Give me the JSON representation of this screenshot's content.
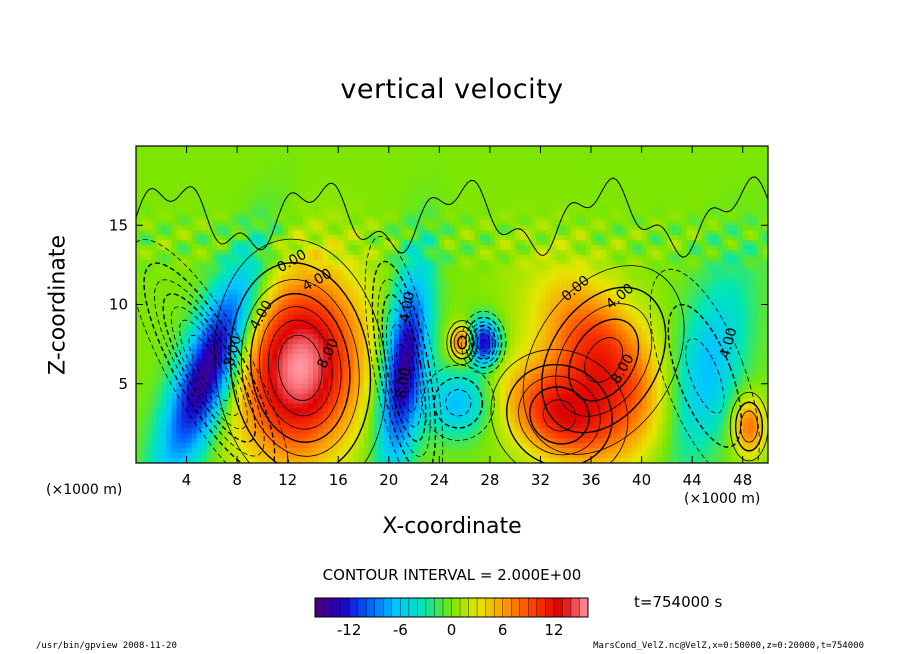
{
  "title": "vertical velocity",
  "footer": {
    "left": "/usr/bin/gpview   2008-11-20",
    "right": "MarsCond_VelZ.nc@VelZ,x=0:50000,z=0:20000,t=754000"
  },
  "contour_interval": "CONTOUR INTERVAL = 2.000E+00",
  "timestamp": "t=754000 s",
  "chart_data": {
    "type": "heatmap",
    "title": "vertical velocity",
    "xlabel": "X-coordinate",
    "ylabel": "Z-coordinate",
    "x_unit_label": "(×1000 m)",
    "y_unit_label": "(×1000 m)",
    "x_ticks": [
      4,
      8,
      12,
      16,
      20,
      24,
      28,
      32,
      36,
      40,
      44,
      48
    ],
    "y_ticks": [
      5,
      10,
      15
    ],
    "xlim": [
      0,
      50
    ],
    "ylim": [
      0,
      20
    ],
    "color_scale": {
      "min": -16,
      "max": 16,
      "ticks": [
        -12,
        -6,
        0,
        6,
        12
      ],
      "colors": [
        "#4b0073",
        "#1e00c8",
        "#0064ff",
        "#00c8ff",
        "#00e6b4",
        "#7de600",
        "#e6e600",
        "#ff9600",
        "#ff3c00",
        "#dc0000",
        "#ff96a0"
      ]
    },
    "background_value": 0,
    "features": [
      {
        "x": 5.8,
        "z": 6.0,
        "sx": 1.6,
        "sz": 4.5,
        "value": -16,
        "tilt": 0.45
      },
      {
        "x": 13.0,
        "z": 6.0,
        "sx": 3.3,
        "sz": 4.0,
        "value": 16,
        "tilt": 0.1
      },
      {
        "x": 21.2,
        "z": 6.0,
        "sx": 1.2,
        "sz": 4.2,
        "value": -15,
        "tilt": 0.15
      },
      {
        "x": 25.5,
        "z": 3.8,
        "sx": 1.8,
        "sz": 1.5,
        "value": -7,
        "tilt": 0
      },
      {
        "x": 25.8,
        "z": 7.6,
        "sx": 0.7,
        "sz": 0.8,
        "value": 9,
        "tilt": 0
      },
      {
        "x": 27.5,
        "z": 7.6,
        "sx": 0.9,
        "sz": 1.0,
        "value": -14,
        "tilt": 0
      },
      {
        "x": 33.5,
        "z": 3.0,
        "sx": 3.0,
        "sz": 2.2,
        "value": 11,
        "tilt": -0.5
      },
      {
        "x": 37.0,
        "z": 6.5,
        "sx": 3.0,
        "sz": 3.5,
        "value": 11,
        "tilt": -0.5
      },
      {
        "x": 45.0,
        "z": 5.5,
        "sx": 2.0,
        "sz": 4.5,
        "value": -7,
        "tilt": 0.3
      },
      {
        "x": 48.5,
        "z": 2.3,
        "sx": 0.9,
        "sz": 1.3,
        "value": 8,
        "tilt": 0
      }
    ],
    "contour_labels": [
      {
        "text": "0.00",
        "x": 12.5,
        "z": 12.5,
        "angle": -30
      },
      {
        "text": "4.00",
        "x": 14.5,
        "z": 11.3,
        "angle": -30
      },
      {
        "text": "4.00",
        "x": 10.2,
        "z": 9.2,
        "angle": -60
      },
      {
        "text": "8.00",
        "x": 8.0,
        "z": 7.0,
        "angle": -75
      },
      {
        "text": "8.00",
        "x": 15.5,
        "z": 6.8,
        "angle": -65
      },
      {
        "text": "4.00",
        "x": 21.8,
        "z": 9.8,
        "angle": -80
      },
      {
        "text": "8.00",
        "x": 21.5,
        "z": 5.0,
        "angle": -80
      },
      {
        "text": "0.00",
        "x": 35.0,
        "z": 10.8,
        "angle": -40
      },
      {
        "text": "4.00",
        "x": 38.5,
        "z": 10.3,
        "angle": -40
      },
      {
        "text": "8.00",
        "x": 38.8,
        "z": 5.8,
        "angle": -60
      },
      {
        "text": "4.00",
        "x": 47.2,
        "z": 7.5,
        "angle": -75
      }
    ]
  }
}
